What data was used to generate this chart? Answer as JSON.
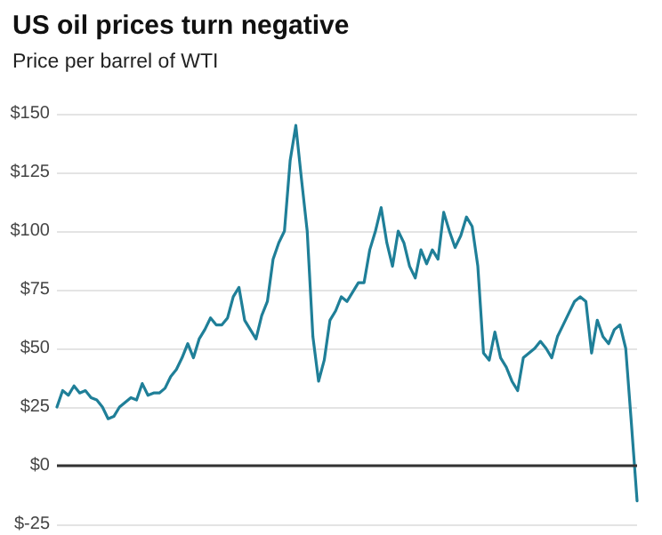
{
  "chart_data": {
    "type": "line",
    "title": "US oil prices turn negative",
    "subtitle": "Price per barrel of WTI",
    "categories": [
      null,
      null,
      null,
      null,
      null,
      null,
      null,
      null,
      null,
      null,
      null,
      null,
      null,
      null,
      null,
      null,
      null,
      null,
      null,
      null,
      null,
      null,
      null,
      null,
      null,
      null,
      null,
      null,
      null,
      null,
      null,
      null,
      null,
      null,
      null,
      null,
      null,
      null,
      null,
      null,
      null,
      null,
      null,
      null,
      null,
      null,
      null,
      null,
      null,
      null,
      null,
      null,
      null,
      null,
      null,
      null,
      null,
      null,
      null,
      null,
      null,
      null,
      null,
      null,
      null,
      null,
      null,
      null,
      null,
      null,
      null,
      null,
      null,
      null,
      null,
      null,
      null,
      null,
      null,
      null,
      null,
      null,
      null,
      null,
      null,
      null,
      null,
      null,
      null,
      null,
      null,
      null,
      null,
      null,
      null,
      null,
      null,
      null,
      null,
      null,
      null,
      null,
      null
    ],
    "series": [
      {
        "color": "#1f7f98",
        "values": [
          25,
          32,
          30,
          34,
          31,
          32,
          29,
          28,
          25,
          20,
          21,
          25,
          27,
          29,
          28,
          35,
          30,
          31,
          31,
          33,
          38,
          41,
          46,
          52,
          46,
          54,
          58,
          63,
          60,
          60,
          63,
          72,
          76,
          62,
          58,
          54,
          64,
          70,
          88,
          95,
          100,
          130,
          145,
          122,
          100,
          55,
          36,
          45,
          62,
          66,
          72,
          70,
          74,
          78,
          78,
          92,
          100,
          110,
          95,
          85,
          100,
          95,
          85,
          80,
          92,
          86,
          92,
          88,
          108,
          100,
          93,
          98,
          106,
          102,
          85,
          48,
          45,
          57,
          46,
          42,
          36,
          32,
          46,
          48,
          50,
          53,
          50,
          46,
          55,
          60,
          65,
          70,
          72,
          70,
          48,
          62,
          55,
          52,
          58,
          60,
          50,
          18,
          -15
        ]
      }
    ],
    "ylim": [
      -25,
      150
    ],
    "yticks": [
      {
        "value": -25,
        "label": "$-25"
      },
      {
        "value": 0,
        "label": "$0"
      },
      {
        "value": 25,
        "label": "$25"
      },
      {
        "value": 50,
        "label": "$50"
      },
      {
        "value": 75,
        "label": "$75"
      },
      {
        "value": 100,
        "label": "$100"
      },
      {
        "value": 125,
        "label": "$125"
      },
      {
        "value": 150,
        "label": "$150"
      }
    ],
    "grid": "y",
    "tick_labels": "y",
    "line_style": "solid",
    "ref_lines": [
      {
        "axis": "y",
        "value": 0,
        "color": "#333333"
      }
    ]
  }
}
